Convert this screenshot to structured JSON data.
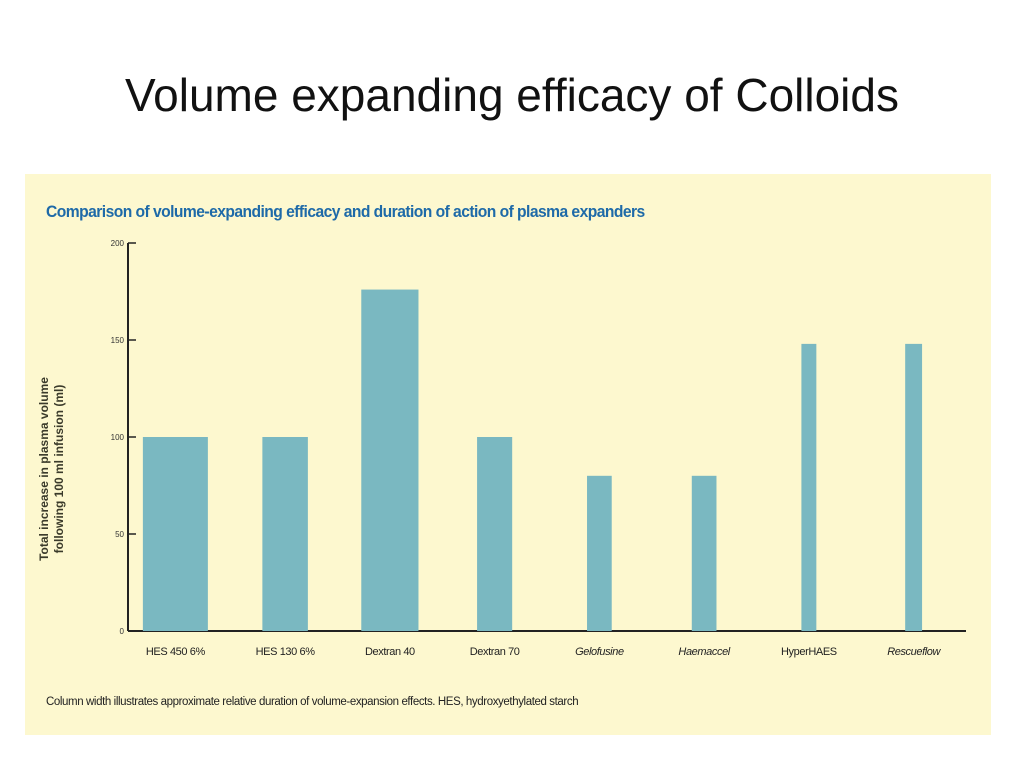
{
  "slide": {
    "title": "Volume expanding efficacy of  Colloids"
  },
  "chart_data": {
    "type": "bar",
    "title": "Comparison of volume-expanding efficacy and duration of action of plasma expanders",
    "ylabel": "Total increase in plasma volume following 100 ml infusion (ml)",
    "ylabel_lines": [
      "Total increase in plasma volume",
      "following 100 ml infusion (ml)"
    ],
    "xlabel": "",
    "ylim": [
      0,
      200
    ],
    "yticks": [
      "0",
      "50",
      "100",
      "150",
      "200"
    ],
    "categories": [
      "HES 450 6%",
      "HES 130 6%",
      "Dextran 40",
      "Dextran 70",
      "Gelofusine",
      "Haemaccel",
      "HyperHAES",
      "Rescueflow"
    ],
    "italic_categories": [
      false,
      false,
      false,
      false,
      true,
      true,
      false,
      true
    ],
    "values": [
      100,
      100,
      176,
      100,
      80,
      80,
      148,
      148
    ],
    "relative_duration": [
      1.0,
      0.7,
      0.88,
      0.54,
      0.38,
      0.38,
      0.23,
      0.26
    ],
    "bar_color": "#7ab8c1",
    "footnote": "Column width illustrates approximate relative duration of volume-expansion effects. HES, hydroxyethylated starch"
  }
}
